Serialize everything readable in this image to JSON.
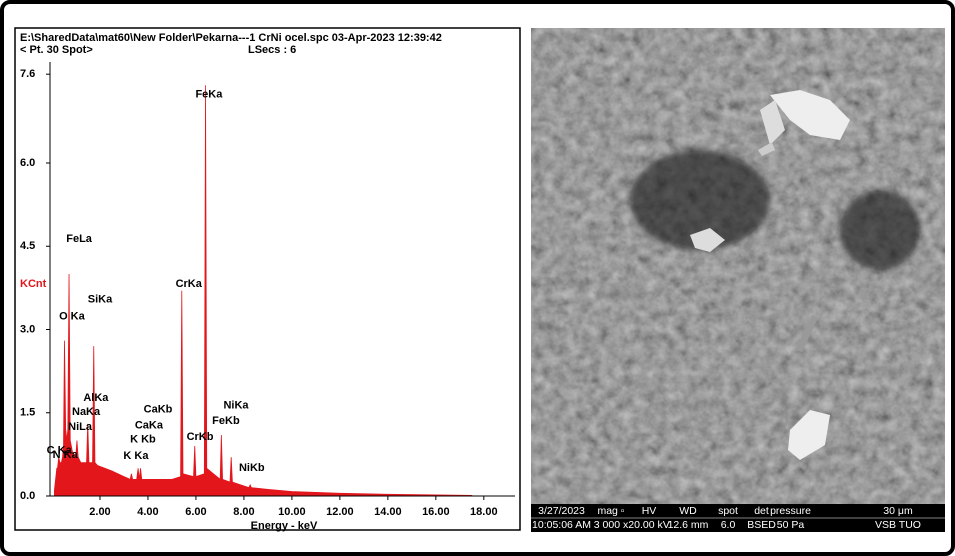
{
  "chart_data": {
    "type": "spectrum",
    "title": "E:\\SharedData\\mat60\\New Folder\\Pekarna---1 CrNi ocel.spc  03-Apr-2023 12:39:42",
    "subtitle": "< Pt. 30 Spot>",
    "live_time": "LSecs :  6",
    "ylabel": "KCnt",
    "xlabel": "Energy - keV",
    "color": "#e3161c",
    "xlim": [
      0,
      19.3
    ],
    "ylim": [
      0,
      8.0
    ],
    "xticks": [
      {
        "value": 2,
        "label": "2.00"
      },
      {
        "value": 4,
        "label": "4.00"
      },
      {
        "value": 6,
        "label": "6.00"
      },
      {
        "value": 8,
        "label": "8.00"
      },
      {
        "value": 10,
        "label": "10.00"
      },
      {
        "value": 12,
        "label": "12.00"
      },
      {
        "value": 14,
        "label": "14.00"
      },
      {
        "value": 16,
        "label": "16.00"
      },
      {
        "value": 18,
        "label": "18.00"
      }
    ],
    "yticks": [
      {
        "value": 0,
        "label": "0.0"
      },
      {
        "value": 1.5,
        "label": "1.5"
      },
      {
        "value": 3,
        "label": "3.0"
      },
      {
        "value": 4.5,
        "label": "4.5"
      },
      {
        "value": 6,
        "label": "6.0"
      },
      {
        "value": 7.6,
        "label": "7.6"
      }
    ],
    "x": [
      0.1,
      0.2,
      0.23,
      0.28,
      0.33,
      0.36,
      0.39,
      0.44,
      0.48,
      0.52,
      0.57,
      0.62,
      0.66,
      0.71,
      0.76,
      0.85,
      0.99,
      1.04,
      1.09,
      1.2,
      1.44,
      1.49,
      1.54,
      1.64,
      1.69,
      1.74,
      1.79,
      1.9,
      2.5,
      3.0,
      3.26,
      3.31,
      3.36,
      3.53,
      3.59,
      3.64,
      3.69,
      3.74,
      4.0,
      4.5,
      5.0,
      5.36,
      5.41,
      5.46,
      5.9,
      5.95,
      6.0,
      6.35,
      6.4,
      6.45,
      7.01,
      7.06,
      7.11,
      7.42,
      7.47,
      7.52,
      8.21,
      8.26,
      8.31,
      9,
      10,
      12,
      14,
      16,
      17.5
    ],
    "values": [
      0.1,
      0.5,
      0.5,
      0.7,
      0.6,
      0.6,
      0.6,
      0.7,
      0.9,
      2.8,
      1.2,
      1.0,
      1.2,
      4.0,
      1.0,
      0.8,
      0.7,
      1.0,
      0.7,
      0.6,
      0.6,
      1.3,
      0.6,
      0.6,
      0.6,
      2.7,
      0.6,
      0.55,
      0.45,
      0.35,
      0.3,
      0.4,
      0.3,
      0.3,
      0.5,
      0.3,
      0.5,
      0.3,
      0.3,
      0.3,
      0.3,
      0.35,
      3.7,
      0.4,
      0.35,
      0.9,
      0.35,
      0.4,
      7.4,
      0.5,
      0.3,
      1.1,
      0.3,
      0.25,
      0.7,
      0.25,
      0.15,
      0.2,
      0.15,
      0.12,
      0.08,
      0.05,
      0.03,
      0.02,
      0.01
    ],
    "annotations": [
      {
        "text": "FeKa",
        "x": 6.54,
        "y": 7.23
      },
      {
        "text": "FeLa",
        "x": 1.13,
        "y": 4.63
      },
      {
        "text": "SiKa",
        "x": 2.0,
        "y": 3.54
      },
      {
        "text": "O Ka",
        "x": 0.83,
        "y": 3.23
      },
      {
        "text": "CrKa",
        "x": 5.7,
        "y": 3.82
      },
      {
        "text": "AlKa",
        "x": 1.83,
        "y": 1.76
      },
      {
        "text": "NaKa",
        "x": 1.42,
        "y": 1.51
      },
      {
        "text": "NiLa",
        "x": 1.17,
        "y": 1.24
      },
      {
        "text": "C Ka",
        "x": 0.3,
        "y": 0.82
      },
      {
        "text": "N Ka",
        "x": 0.55,
        "y": 0.74
      },
      {
        "text": "CaKb",
        "x": 4.42,
        "y": 1.56
      },
      {
        "text": "CaKa",
        "x": 4.04,
        "y": 1.27
      },
      {
        "text": "K Kb",
        "x": 3.79,
        "y": 1.02
      },
      {
        "text": "K Ka",
        "x": 3.5,
        "y": 0.72
      },
      {
        "text": "CrKb",
        "x": 6.17,
        "y": 1.06
      },
      {
        "text": "NiKa",
        "x": 7.67,
        "y": 1.63
      },
      {
        "text": "FeKb",
        "x": 7.25,
        "y": 1.35
      },
      {
        "text": "NiKb",
        "x": 8.33,
        "y": 0.5
      }
    ]
  },
  "image_panel": {
    "info_header": [
      "3/27/2023",
      "mag ▫",
      "HV",
      "WD",
      "spot",
      "det",
      "pressure",
      "30 μm"
    ],
    "info_values": [
      "10:05:06 AM",
      "3 000 x",
      "20.00 kV",
      "12.6 mm",
      "6.0",
      "BSED",
      "50 Pa",
      "VSB TUO"
    ]
  }
}
